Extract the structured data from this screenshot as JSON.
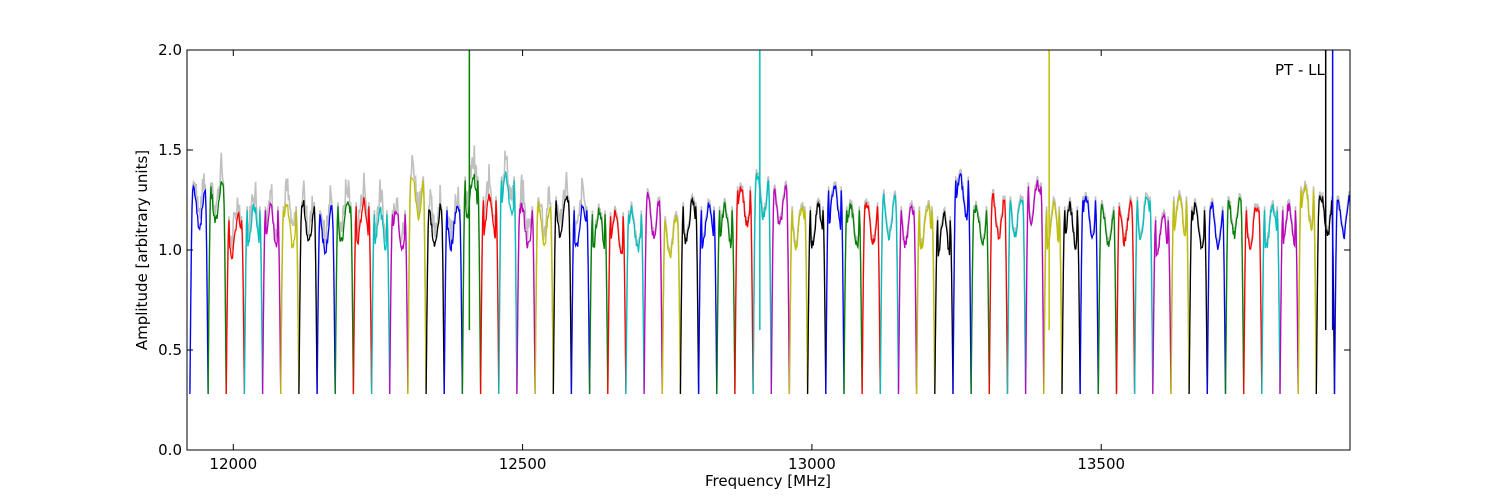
{
  "chart_data": {
    "type": "line",
    "title": "",
    "annotation": "PT - LL",
    "xlabel": "Frequency [MHz]",
    "ylabel": "Amplitude [arbitrary units]",
    "xlim": [
      11920,
      13930
    ],
    "ylim": [
      0.0,
      2.0
    ],
    "xticks": [
      12000,
      12500,
      13000,
      13500
    ],
    "yticks": [
      0.0,
      0.5,
      1.0,
      1.5,
      2.0
    ],
    "xtick_labels": [
      "12000",
      "12500",
      "13000",
      "13500"
    ],
    "ytick_labels": [
      "0.0",
      "0.5",
      "1.0",
      "1.5",
      "2.0"
    ],
    "grid": false,
    "legend": "none",
    "background_series_color": "#c0c0c0",
    "palette": [
      "#0000ff",
      "#008000",
      "#ff0000",
      "#00bfbf",
      "#bf00bf",
      "#bfbf00",
      "#000000"
    ],
    "channel_start": 11925,
    "channel_width": 31.4,
    "channel_count": 64,
    "channel_levels": [
      1.3,
      1.32,
      1.15,
      1.2,
      1.2,
      1.2,
      1.22,
      1.18,
      1.22,
      1.22,
      1.18,
      1.18,
      1.35,
      1.2,
      1.2,
      1.35,
      1.25,
      1.35,
      1.2,
      1.22,
      1.25,
      1.2,
      1.18,
      1.17,
      1.18,
      1.25,
      1.15,
      1.22,
      1.2,
      1.2,
      1.3,
      1.35,
      1.3,
      1.2,
      1.2,
      1.3,
      1.2,
      1.22,
      1.25,
      1.2,
      1.2,
      1.15,
      1.35,
      1.2,
      1.25,
      1.25,
      1.32,
      1.2,
      1.2,
      1.25,
      1.2,
      1.22,
      1.25,
      1.15,
      1.25,
      1.2,
      1.2,
      1.25,
      1.2,
      1.2,
      1.2,
      1.3,
      1.25,
      1.25
    ],
    "spikes": [
      {
        "x": 12408,
        "top": 2.0,
        "color": "#008000"
      },
      {
        "x": 12910,
        "top": 2.0,
        "color": "#00bfbf"
      },
      {
        "x": 13410,
        "top": 2.0,
        "color": "#bfbf00"
      },
      {
        "x": 13888,
        "top": 2.0,
        "color": "#000000"
      },
      {
        "x": 13900,
        "top": 2.0,
        "color": "#0000ff"
      }
    ]
  }
}
